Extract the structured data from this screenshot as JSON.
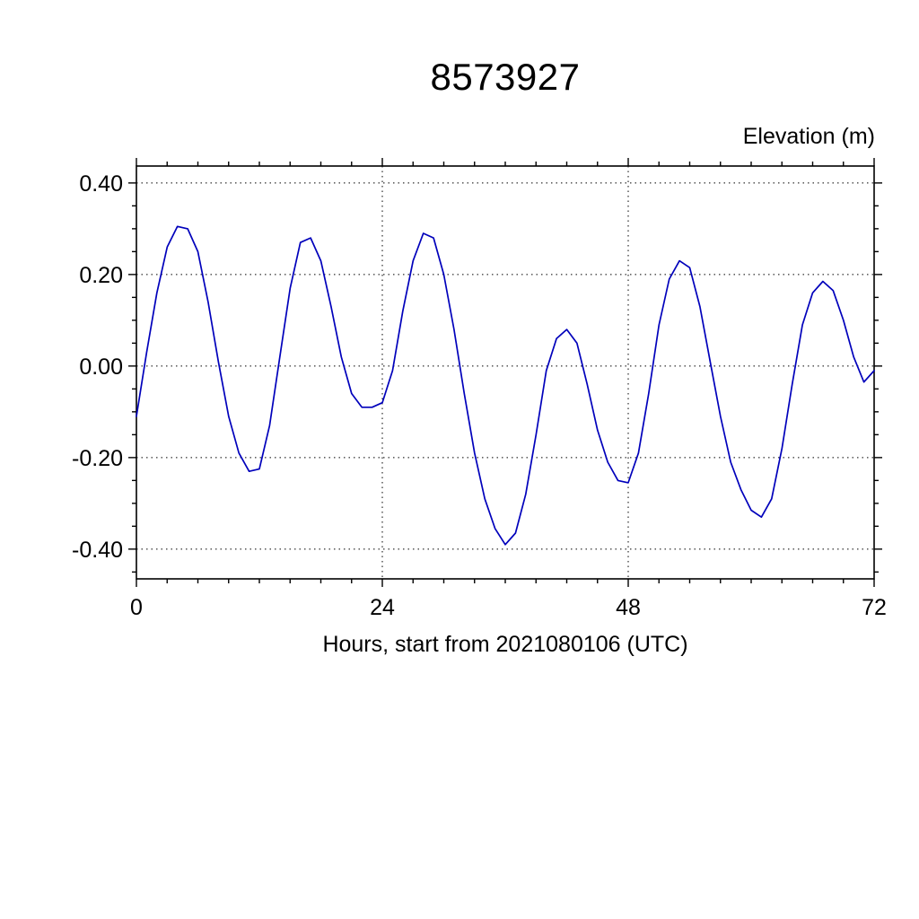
{
  "page": {
    "background": "#ffffff",
    "foreground": "#000000"
  },
  "chart_data": {
    "type": "line",
    "title": "8573927",
    "ylabel": "Elevation (m)",
    "xlabel": "Hours, start from 2021080106 (UTC)",
    "xlim": [
      0,
      72
    ],
    "ylim": [
      -0.465,
      0.437
    ],
    "xticks": [
      0,
      24,
      48,
      72
    ],
    "xtick_labels": [
      "0",
      "24",
      "48",
      "72"
    ],
    "yticks": [
      0.4,
      0.2,
      0,
      -0.2,
      -0.4
    ],
    "ytick_labels": [
      "0.40",
      "0.20",
      "0.00",
      "-0.20",
      "-0.40"
    ],
    "x_minor_step": 3,
    "y_minor_step": 0.05,
    "grid_x": [
      24,
      48
    ],
    "grid_y": [
      0.4,
      0.2,
      0,
      -0.2,
      -0.4
    ],
    "grid_style": "dashed",
    "legend": "none",
    "line_color": "#0000bb",
    "series": [
      {
        "name": "elevation",
        "x": [
          0,
          1,
          2,
          3,
          4,
          5,
          6,
          7,
          8,
          9,
          10,
          11,
          12,
          13,
          14,
          15,
          16,
          17,
          18,
          19,
          20,
          21,
          22,
          23,
          24,
          25,
          26,
          27,
          28,
          29,
          30,
          31,
          32,
          33,
          34,
          35,
          36,
          37,
          38,
          39,
          40,
          41,
          42,
          43,
          44,
          45,
          46,
          47,
          48,
          49,
          50,
          51,
          52,
          53,
          54,
          55,
          56,
          57,
          58,
          59,
          60,
          61,
          62,
          63,
          64,
          65,
          66,
          67,
          68,
          69,
          70,
          71,
          72
        ],
        "y": [
          -0.11,
          0.03,
          0.16,
          0.26,
          0.305,
          0.3,
          0.25,
          0.14,
          0.01,
          -0.11,
          -0.19,
          -0.23,
          -0.225,
          -0.13,
          0.02,
          0.17,
          0.27,
          0.28,
          0.23,
          0.13,
          0.02,
          -0.06,
          -0.09,
          -0.09,
          -0.08,
          -0.01,
          0.12,
          0.23,
          0.29,
          0.28,
          0.2,
          0.08,
          -0.06,
          -0.19,
          -0.29,
          -0.355,
          -0.39,
          -0.365,
          -0.28,
          -0.15,
          -0.01,
          0.06,
          0.08,
          0.05,
          -0.04,
          -0.14,
          -0.21,
          -0.25,
          -0.255,
          -0.19,
          -0.06,
          0.09,
          0.19,
          0.23,
          0.215,
          0.13,
          0.01,
          -0.11,
          -0.21,
          -0.27,
          -0.315,
          -0.33,
          -0.29,
          -0.18,
          -0.04,
          0.09,
          0.16,
          0.185,
          0.165,
          0.1,
          0.02,
          -0.035,
          -0.01
        ]
      }
    ]
  }
}
